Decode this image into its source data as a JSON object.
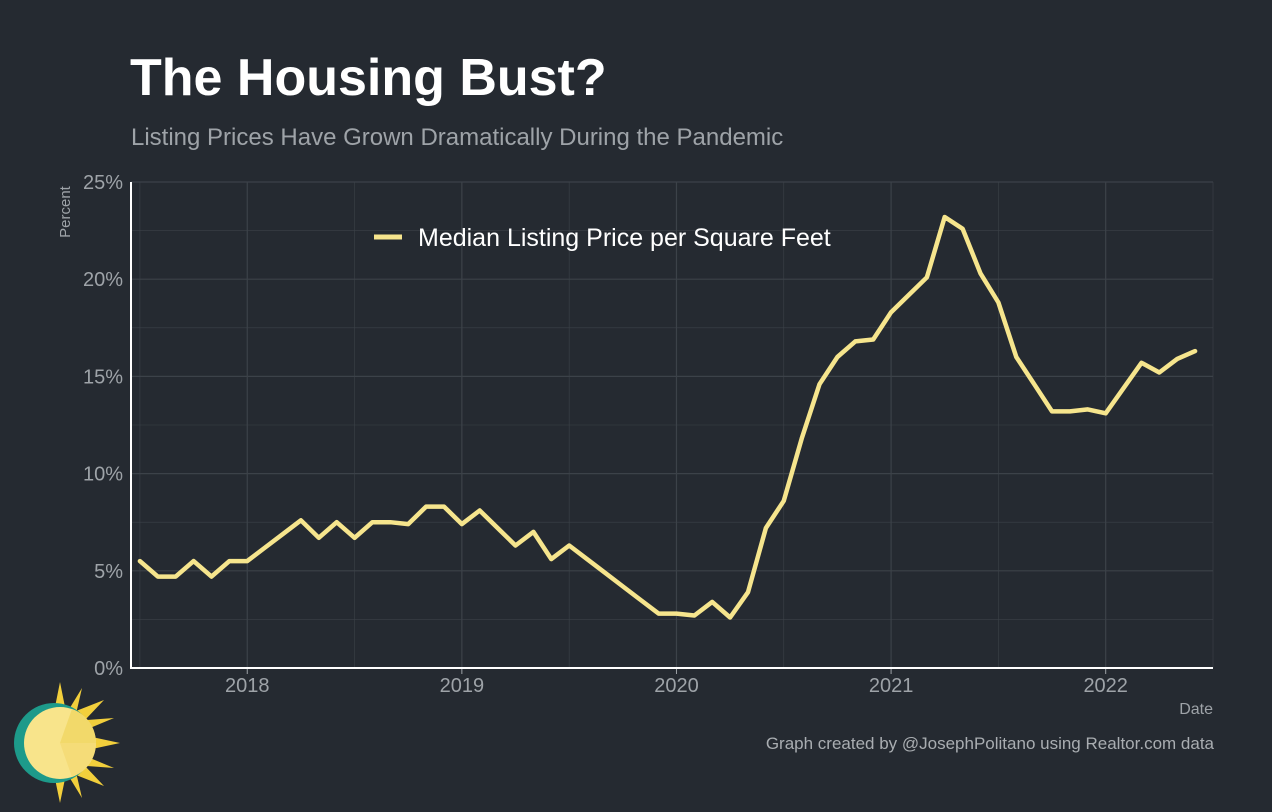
{
  "page": {
    "credit": "Graph created by @JosephPolitano using Realtor.com data"
  },
  "colors": {
    "background": "#252a31",
    "line": "#f6e58d",
    "grid": "#3c4249",
    "axis": "#ffffff",
    "text_muted": "#9ea3a8"
  },
  "chart_data": {
    "type": "line",
    "title": "The Housing Bust?",
    "subtitle": "Listing Prices Have Grown Dramatically During the Pandemic",
    "xlabel": "Date",
    "ylabel": "Percent",
    "xlim": [
      "2017-06",
      "2022-07"
    ],
    "ylim": [
      0,
      25
    ],
    "y_ticks": [
      0,
      5,
      10,
      15,
      20,
      25
    ],
    "y_tick_labels": [
      "0%",
      "5%",
      "10%",
      "15%",
      "20%",
      "25%"
    ],
    "x_ticks": [
      "2018-01",
      "2019-01",
      "2020-01",
      "2021-01",
      "2022-01"
    ],
    "x_tick_labels": [
      "2018",
      "2019",
      "2020",
      "2021",
      "2022"
    ],
    "grid": true,
    "legend_position": "top-center",
    "series": [
      {
        "name": "Median Listing Price per Square Feet",
        "color": "#f6e58d",
        "x": [
          "2017-07",
          "2017-08",
          "2017-09",
          "2017-10",
          "2017-11",
          "2017-12",
          "2018-01",
          "2018-02",
          "2018-03",
          "2018-04",
          "2018-05",
          "2018-06",
          "2018-07",
          "2018-08",
          "2018-09",
          "2018-10",
          "2018-11",
          "2018-12",
          "2019-01",
          "2019-02",
          "2019-03",
          "2019-04",
          "2019-05",
          "2019-06",
          "2019-07",
          "2019-08",
          "2019-09",
          "2019-10",
          "2019-11",
          "2019-12",
          "2020-01",
          "2020-02",
          "2020-03",
          "2020-04",
          "2020-05",
          "2020-06",
          "2020-07",
          "2020-08",
          "2020-09",
          "2020-10",
          "2020-11",
          "2020-12",
          "2021-01",
          "2021-02",
          "2021-03",
          "2021-04",
          "2021-05",
          "2021-06",
          "2021-07",
          "2021-08",
          "2021-09",
          "2021-10",
          "2021-11",
          "2021-12",
          "2022-01",
          "2022-02",
          "2022-03",
          "2022-04",
          "2022-05",
          "2022-06"
        ],
        "values": [
          5.5,
          4.7,
          4.7,
          5.5,
          4.7,
          5.5,
          5.5,
          6.2,
          6.9,
          7.6,
          6.7,
          7.5,
          6.7,
          7.5,
          7.5,
          7.4,
          8.3,
          8.3,
          7.4,
          8.1,
          7.2,
          6.3,
          7.0,
          5.6,
          6.3,
          5.6,
          4.9,
          4.2,
          3.5,
          2.8,
          2.8,
          2.7,
          3.4,
          2.6,
          3.9,
          7.2,
          8.6,
          11.8,
          14.6,
          16.0,
          16.8,
          16.9,
          18.3,
          19.2,
          20.1,
          23.2,
          22.6,
          20.3,
          18.8,
          16.0,
          14.6,
          13.2,
          13.2,
          13.3,
          13.1,
          14.4,
          15.7,
          15.2,
          15.9,
          16.3
        ]
      }
    ]
  }
}
